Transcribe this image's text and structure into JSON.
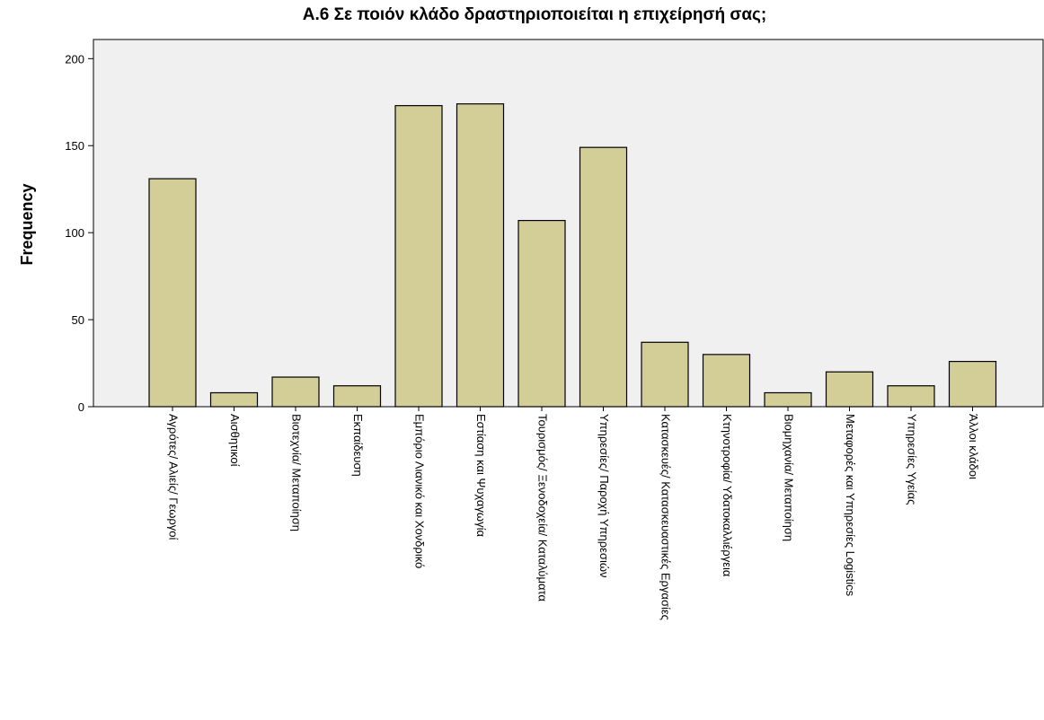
{
  "chart_data": {
    "type": "bar",
    "title": "Α.6 Σε ποιόν κλάδο δραστηριοποιείται η επιχείρησή σας;",
    "y_label": "Frequency",
    "categories": [
      "Αγρότες/ Αλιείς/ Γεωργοί",
      "Αισθητικοί",
      "Βιοτεχνία/ Μεταποίηση",
      "Εκπαίδευση",
      "Εμπόριο Λιανικό και Χονδρικό",
      "Εστίαση και Ψυχαγωγία",
      "Τουρισμός/ Ξενοδοχεία/ Καταλύματα",
      "Υπηρεσίες/ Παροχή Υπηρεσιών",
      "Κατασκευές/ Κατασκευαστικές Εργασίες",
      "Κτηνοτροφία/ Υδατοκαλλιέργεια",
      "Βιομηχανία/ Μεταποίηση",
      "Μεταφορές και Υπηρεσίες Logistics",
      "Υπηρεσίες Υγείας",
      "Άλλοι κλάδοι"
    ],
    "values": [
      131,
      8,
      17,
      12,
      173,
      174,
      107,
      149,
      37,
      30,
      8,
      20,
      12,
      26
    ],
    "color": "#d3ce97",
    "ylim": [
      0,
      211
    ],
    "yticks": [
      0,
      50,
      100,
      150,
      200
    ],
    "grid": false
  }
}
